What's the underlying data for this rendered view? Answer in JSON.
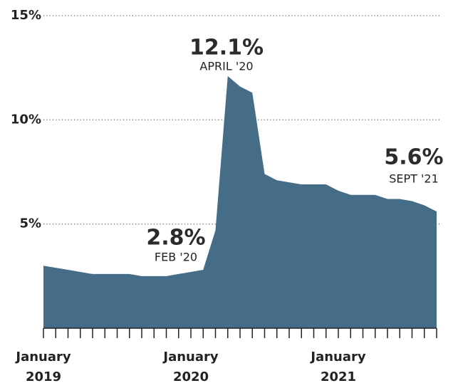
{
  "chart_data": {
    "type": "area",
    "categories": [
      "January 2019",
      null,
      null,
      null,
      null,
      null,
      null,
      null,
      null,
      null,
      null,
      null,
      "January 2020",
      null,
      null,
      null,
      null,
      null,
      null,
      null,
      null,
      null,
      null,
      null,
      "January 2021",
      null,
      null,
      null,
      null,
      null,
      null,
      null,
      null
    ],
    "values": [
      3.0,
      2.9,
      2.8,
      2.7,
      2.6,
      2.6,
      2.6,
      2.6,
      2.5,
      2.5,
      2.5,
      2.6,
      2.7,
      2.8,
      4.7,
      12.1,
      11.6,
      11.3,
      7.4,
      7.1,
      7.0,
      6.9,
      6.9,
      6.9,
      6.6,
      6.4,
      6.4,
      6.4,
      6.2,
      6.2,
      6.1,
      5.9,
      5.6
    ],
    "color": "#466d88",
    "ylim": [
      0,
      15
    ],
    "yticks": [
      {
        "value": 5,
        "label": "5%"
      },
      {
        "value": 10,
        "label": "10%"
      },
      {
        "value": 15,
        "label": "15%"
      }
    ],
    "grid": true,
    "annotations": [
      {
        "text": "12.1%",
        "subtext": "APRIL '20"
      },
      {
        "text": "2.8%",
        "subtext": "FEB '20"
      },
      {
        "text": "5.6%",
        "subtext": "SEPT '21"
      }
    ]
  }
}
